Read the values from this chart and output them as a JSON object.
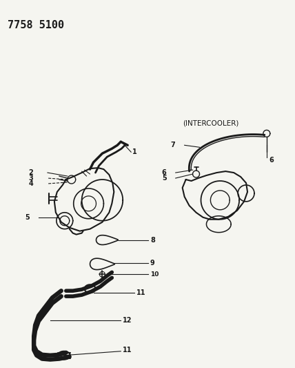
{
  "title": "7758 5100",
  "background_color": "#f5f5f0",
  "line_color": "#1a1a1a",
  "intercooler_label": "(INTERCOOLER)"
}
